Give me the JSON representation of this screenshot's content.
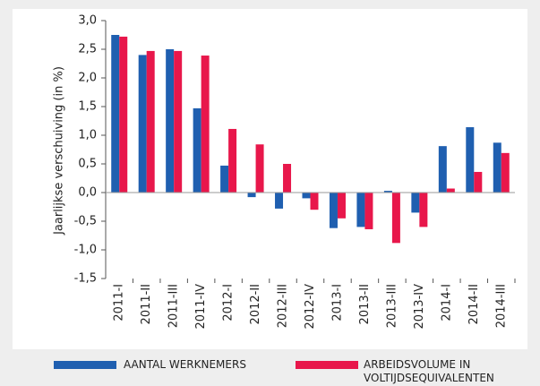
{
  "chart_data": {
    "type": "bar",
    "y_label": "Jaarlijkse verschuiving (in %)",
    "categories": [
      "2011-I",
      "2011-II",
      "2011-III",
      "2011-IV",
      "2012-I",
      "2012-II",
      "2012-III",
      "2012-IV",
      "2013-I",
      "2013-II",
      "2013-III",
      "2013-IV",
      "2014-I",
      "2014-II",
      "2014-III"
    ],
    "series": [
      {
        "name": "AANTAL WERKNEMERS",
        "color": "#1f5fb0",
        "values": [
          2.75,
          2.4,
          2.5,
          1.47,
          0.47,
          -0.08,
          -0.28,
          -0.1,
          -0.62,
          -0.6,
          0.03,
          -0.35,
          0.81,
          1.14,
          0.87
        ]
      },
      {
        "name": "ARBEIDSVOLUME IN VOLTIJDSEQUIVALENTEN",
        "color": "#e8174b",
        "values": [
          2.72,
          2.47,
          2.47,
          2.39,
          1.11,
          0.84,
          0.5,
          -0.3,
          -0.45,
          -0.64,
          -0.88,
          -0.6,
          0.07,
          0.36,
          0.69
        ]
      }
    ],
    "ylim": [
      -1.5,
      3.0
    ],
    "yticks": [
      {
        "value": -1.5,
        "label": "-1,5"
      },
      {
        "value": -1.0,
        "label": "-1,0"
      },
      {
        "value": -0.5,
        "label": "-0,5"
      },
      {
        "value": 0,
        "label": "0,0"
      },
      {
        "value": 0.5,
        "label": "0,5"
      },
      {
        "value": 1.0,
        "label": "1,0"
      },
      {
        "value": 1.5,
        "label": "1,5"
      },
      {
        "value": 2.0,
        "label": "2,0"
      },
      {
        "value": 2.5,
        "label": "2,5"
      },
      {
        "value": 3.0,
        "label": "3,0"
      }
    ],
    "grid": false
  }
}
